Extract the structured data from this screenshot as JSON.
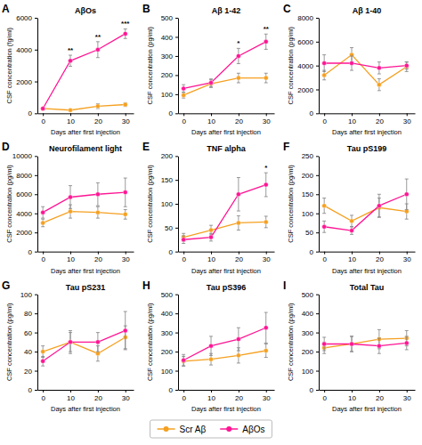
{
  "chart_data": [
    {
      "type": "line",
      "panel_label": "A",
      "title": "AβOs",
      "x_label": "Days after first injection",
      "y_label": "CSF concentration (fg/ml)",
      "x": [
        0,
        10,
        20,
        30
      ],
      "xlim": [
        -2,
        33
      ],
      "xticks": [
        0,
        10,
        20,
        30
      ],
      "ylim": [
        0,
        6000
      ],
      "yticks": [
        0,
        2000,
        4000,
        6000
      ],
      "marker": "circle",
      "grid": false,
      "legend": "bottom",
      "series": [
        {
          "name": "Scr Aβ",
          "color": "#F5A020",
          "values": [
            300,
            200,
            450,
            550
          ],
          "yerr": [
            50,
            30,
            150,
            120
          ]
        },
        {
          "name": "AβOs",
          "color": "#FF1493",
          "values": [
            300,
            3300,
            4000,
            5000
          ],
          "yerr": [
            80,
            350,
            500,
            300
          ]
        }
      ],
      "annotations": [
        {
          "x": 10,
          "text": "**"
        },
        {
          "x": 20,
          "text": "**"
        },
        {
          "x": 30,
          "text": "***"
        }
      ]
    },
    {
      "type": "line",
      "panel_label": "B",
      "title": "Aβ 1-42",
      "x_label": "Days after first injection",
      "y_label": "CSF concentration (pg/ml)",
      "x": [
        0,
        10,
        20,
        30
      ],
      "xlim": [
        -2,
        33
      ],
      "xticks": [
        0,
        10,
        20,
        30
      ],
      "ylim": [
        0,
        500
      ],
      "yticks": [
        0,
        100,
        200,
        300,
        400,
        500
      ],
      "marker": "circle",
      "grid": false,
      "series": [
        {
          "name": "Scr Aβ",
          "color": "#F5A020",
          "values": [
            95,
            155,
            185,
            185
          ],
          "yerr": [
            15,
            20,
            25,
            25
          ]
        },
        {
          "name": "AβOs",
          "color": "#FF1493",
          "values": [
            130,
            160,
            300,
            375
          ],
          "yerr": [
            20,
            20,
            40,
            40
          ]
        }
      ],
      "annotations": [
        {
          "x": 20,
          "text": "*"
        },
        {
          "x": 30,
          "text": "**"
        }
      ]
    },
    {
      "type": "line",
      "panel_label": "C",
      "title": "Aβ 1-40",
      "x_label": "Days after first injection",
      "y_label": "CSF concentration (pg/ml)",
      "x": [
        0,
        10,
        20,
        30
      ],
      "xlim": [
        -2,
        33
      ],
      "xticks": [
        0,
        10,
        20,
        30
      ],
      "ylim": [
        0,
        8000
      ],
      "yticks": [
        0,
        2000,
        4000,
        6000,
        8000
      ],
      "marker": "circle",
      "grid": false,
      "series": [
        {
          "name": "Scr Aβ",
          "color": "#F5A020",
          "values": [
            3200,
            4900,
            2400,
            3900
          ],
          "yerr": [
            400,
            600,
            500,
            400
          ]
        },
        {
          "name": "AβOs",
          "color": "#FF1493",
          "values": [
            4200,
            4200,
            3800,
            4000
          ],
          "yerr": [
            700,
            600,
            500,
            300
          ]
        }
      ]
    },
    {
      "type": "line",
      "panel_label": "D",
      "title": "Neurofilament light",
      "x_label": "Days after first injection",
      "y_label": "CSF concentration (pg/ml)",
      "x": [
        0,
        10,
        20,
        30
      ],
      "xlim": [
        -2,
        33
      ],
      "xticks": [
        0,
        10,
        20,
        30
      ],
      "ylim": [
        0,
        10000
      ],
      "yticks": [
        0,
        2000,
        4000,
        6000,
        8000,
        10000
      ],
      "marker": "circle",
      "grid": false,
      "series": [
        {
          "name": "Scr Aβ",
          "color": "#F5A020",
          "values": [
            3000,
            4200,
            4100,
            3900
          ],
          "yerr": [
            400,
            700,
            600,
            500
          ]
        },
        {
          "name": "AβOs",
          "color": "#FF1493",
          "values": [
            4100,
            5700,
            6000,
            6200
          ],
          "yerr": [
            600,
            1200,
            1200,
            1500
          ]
        }
      ]
    },
    {
      "type": "line",
      "panel_label": "E",
      "title": "TNF alpha",
      "x_label": "Days after first injection",
      "y_label": "CSF concentration (pg/ml)",
      "x": [
        0,
        10,
        20,
        30
      ],
      "xlim": [
        -2,
        33
      ],
      "xticks": [
        0,
        10,
        20,
        30
      ],
      "ylim": [
        0,
        200
      ],
      "yticks": [
        0,
        50,
        100,
        150,
        200
      ],
      "marker": "circle",
      "grid": false,
      "series": [
        {
          "name": "Scr Aβ",
          "color": "#F5A020",
          "values": [
            30,
            45,
            60,
            62
          ],
          "yerr": [
            8,
            10,
            15,
            12
          ]
        },
        {
          "name": "AβOs",
          "color": "#FF1493",
          "values": [
            25,
            30,
            120,
            140
          ],
          "yerr": [
            8,
            8,
            35,
            25
          ]
        }
      ],
      "annotations": [
        {
          "x": 30,
          "text": "*"
        }
      ]
    },
    {
      "type": "line",
      "panel_label": "F",
      "title": "Tau pS199",
      "x_label": "Days after first injection",
      "y_label": "CSF concentration (pg/ml)",
      "x": [
        0,
        10,
        20,
        30
      ],
      "xlim": [
        -2,
        33
      ],
      "xticks": [
        0,
        10,
        20,
        30
      ],
      "ylim": [
        0,
        250
      ],
      "yticks": [
        0,
        50,
        100,
        150,
        200,
        250
      ],
      "marker": "circle",
      "grid": false,
      "series": [
        {
          "name": "Scr Aβ",
          "color": "#F5A020",
          "values": [
            120,
            80,
            115,
            105
          ],
          "yerr": [
            20,
            15,
            25,
            20
          ]
        },
        {
          "name": "AβOs",
          "color": "#FF1493",
          "values": [
            65,
            55,
            120,
            150
          ],
          "yerr": [
            15,
            10,
            30,
            40
          ]
        }
      ]
    },
    {
      "type": "line",
      "panel_label": "G",
      "title": "Tau pS231",
      "x_label": "Days after first injection",
      "y_label": "CSF concentration (pg/ml)",
      "x": [
        0,
        10,
        20,
        30
      ],
      "xlim": [
        -2,
        33
      ],
      "xticks": [
        0,
        10,
        20,
        30
      ],
      "ylim": [
        0,
        100
      ],
      "yticks": [
        0,
        20,
        40,
        60,
        80,
        100
      ],
      "marker": "circle",
      "grid": false,
      "series": [
        {
          "name": "Scr Aβ",
          "color": "#F5A020",
          "values": [
            40,
            50,
            38,
            55
          ],
          "yerr": [
            6,
            10,
            8,
            12
          ]
        },
        {
          "name": "AβOs",
          "color": "#FF1493",
          "values": [
            30,
            50,
            50,
            62
          ],
          "yerr": [
            5,
            12,
            10,
            20
          ]
        }
      ]
    },
    {
      "type": "line",
      "panel_label": "H",
      "title": "Tau pS396",
      "x_label": "Days after first injection",
      "y_label": "CSF concentration (pg/ml)",
      "x": [
        0,
        10,
        20,
        30
      ],
      "xlim": [
        -2,
        33
      ],
      "xticks": [
        0,
        10,
        20,
        30
      ],
      "ylim": [
        0,
        500
      ],
      "yticks": [
        0,
        100,
        200,
        300,
        400,
        500
      ],
      "marker": "circle",
      "grid": false,
      "series": [
        {
          "name": "Scr Aβ",
          "color": "#F5A020",
          "values": [
            150,
            160,
            180,
            205
          ],
          "yerr": [
            25,
            30,
            40,
            35
          ]
        },
        {
          "name": "AβOs",
          "color": "#FF1493",
          "values": [
            155,
            230,
            265,
            325
          ],
          "yerr": [
            30,
            50,
            60,
            80
          ]
        }
      ]
    },
    {
      "type": "line",
      "panel_label": "I",
      "title": "Total Tau",
      "x_label": "Days after first injection",
      "y_label": "CSF concentration (pg/ml)",
      "x": [
        0,
        10,
        20,
        30
      ],
      "xlim": [
        -2,
        33
      ],
      "xticks": [
        0,
        10,
        20,
        30
      ],
      "ylim": [
        0,
        500
      ],
      "yticks": [
        0,
        100,
        200,
        300,
        400,
        500
      ],
      "marker": "circle",
      "grid": false,
      "series": [
        {
          "name": "Scr Aβ",
          "color": "#F5A020",
          "values": [
            220,
            240,
            265,
            270
          ],
          "yerr": [
            30,
            40,
            50,
            40
          ]
        },
        {
          "name": "AβOs",
          "color": "#FF1493",
          "values": [
            240,
            240,
            230,
            245
          ],
          "yerr": [
            35,
            40,
            40,
            35
          ]
        }
      ]
    }
  ]
}
